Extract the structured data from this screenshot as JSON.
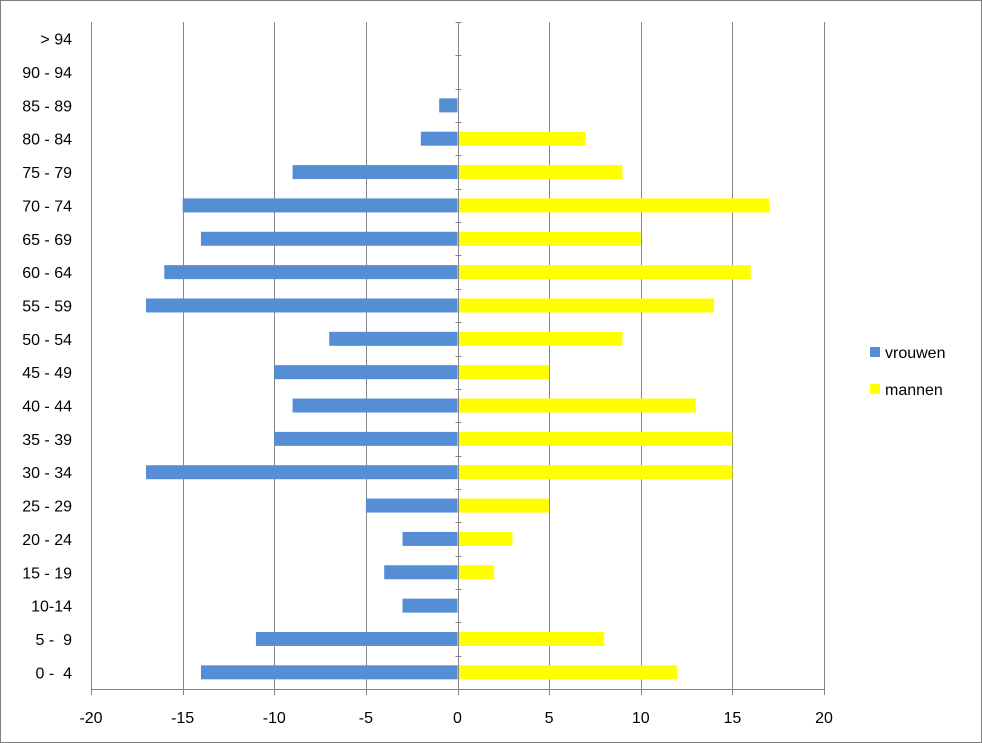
{
  "chart_data": {
    "type": "bar",
    "orientation": "horizontal",
    "categories": [
      "0 -  4",
      "5 -  9",
      "10-14",
      "15 - 19",
      "20 - 24",
      "25 - 29",
      "30 - 34",
      "35 - 39",
      "40 - 44",
      "45 - 49",
      "50 - 54",
      "55 - 59",
      "60 - 64",
      "65 - 69",
      "70 - 74",
      "75 - 79",
      "80 - 84",
      "85 - 89",
      "90 - 94",
      "> 94"
    ],
    "series": [
      {
        "name": "vrouwen",
        "color": "#558ED5",
        "values": [
          -14,
          -11,
          -3,
          -4,
          -3,
          -5,
          -17,
          -10,
          -9,
          -10,
          -7,
          -17,
          -16,
          -14,
          -15,
          -9,
          -2,
          -1,
          0,
          0
        ]
      },
      {
        "name": "mannen",
        "color": "#FFFF00",
        "values": [
          12,
          8,
          0,
          2,
          3,
          5,
          15,
          15,
          13,
          5,
          9,
          14,
          16,
          10,
          17,
          9,
          7,
          0,
          0,
          0
        ]
      }
    ],
    "xlim": [
      -20,
      20
    ],
    "xticks": [
      -20,
      -15,
      -10,
      -5,
      0,
      5,
      10,
      15,
      20
    ],
    "grid": "vertical",
    "legend": "right",
    "title": "",
    "xlabel": "",
    "ylabel": ""
  }
}
